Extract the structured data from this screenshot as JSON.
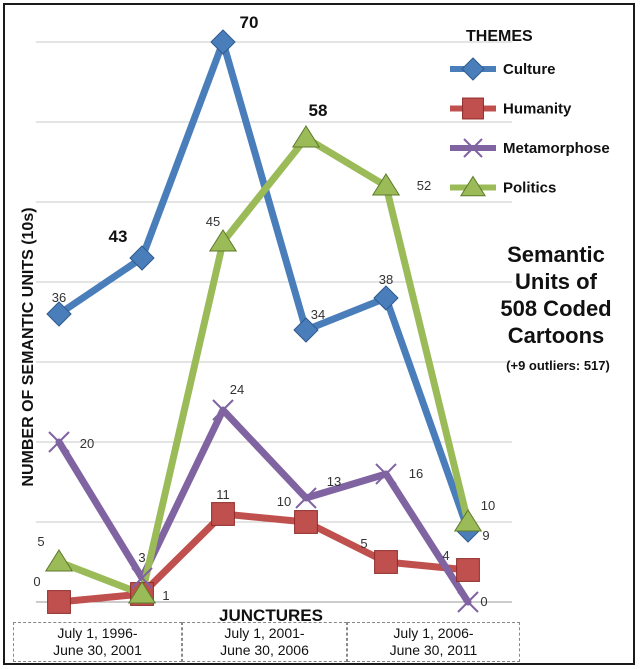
{
  "chart_data": {
    "type": "line",
    "categories": [
      "July 1, 1996-\nJune 30, 2001",
      "July 1, 2001-\nJune 30, 2006",
      "July 1, 2006-\nJune 30, 2011"
    ],
    "x": [
      0,
      1,
      2,
      3,
      4,
      5
    ],
    "xlabel": "JUNCTURES",
    "ylabel": "NUMBER OF SEMANTIC UNITS (10s)",
    "ylim": [
      0,
      70
    ],
    "grid": true,
    "legend_title": "THEMES",
    "legend_position": "top-right",
    "series": [
      {
        "name": "Culture",
        "color": "#4a7ebb",
        "marker": "diamond",
        "values": [
          36,
          43,
          70,
          34,
          38,
          9
        ],
        "labels": [
          "36",
          "43",
          "70",
          "34",
          "38",
          "9"
        ],
        "big": [
          false,
          true,
          true,
          false,
          false,
          false
        ]
      },
      {
        "name": "Humanity",
        "color": "#c0504d",
        "marker": "square",
        "values": [
          0,
          1,
          11,
          10,
          5,
          4
        ],
        "labels": [
          "0",
          "1",
          "11",
          "10",
          "5",
          "4"
        ],
        "big": [
          false,
          false,
          false,
          false,
          false,
          false
        ]
      },
      {
        "name": "Metamorphose",
        "color": "#8064a2",
        "marker": "x",
        "values": [
          20,
          3,
          24,
          13,
          16,
          0
        ],
        "labels": [
          "20",
          "3",
          "24",
          "13",
          "16",
          "0"
        ],
        "big": [
          false,
          false,
          false,
          false,
          false,
          false
        ]
      },
      {
        "name": "Politics",
        "color": "#9bbb59",
        "marker": "triangle",
        "values": [
          5,
          1,
          45,
          58,
          52,
          10
        ],
        "labels": [
          "5",
          "",
          "45",
          "58",
          "52",
          "10"
        ],
        "big": [
          false,
          false,
          false,
          true,
          false,
          false
        ]
      }
    ],
    "annotation": {
      "title_lines": [
        "Semantic",
        "Units of",
        "508 Coded",
        "Cartoons"
      ],
      "subtitle": "(+9 outliers: 517)"
    }
  }
}
